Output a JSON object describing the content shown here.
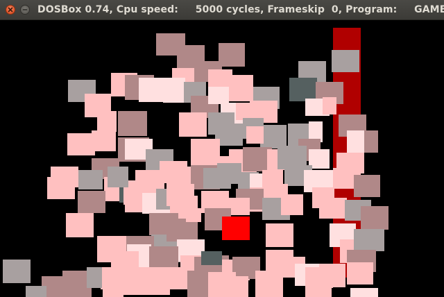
{
  "window": {
    "title": "DOSBox 0.74, Cpu speed:     5000 cycles, Frameskip  0, Program:     GAME"
  },
  "titlebar_buttons": {
    "close_icon": "close-icon",
    "minimize_icon": "minimize-icon"
  },
  "colors": {
    "background": "#000000",
    "pink_light": "#ffc0c0",
    "pink_pale": "#ffe0e0",
    "rose": "#b08888",
    "gray": "#a8a0a0",
    "dark_slate": "#556060",
    "red_player": "#ff0000",
    "dark_red_bar": "#b00000"
  }
}
